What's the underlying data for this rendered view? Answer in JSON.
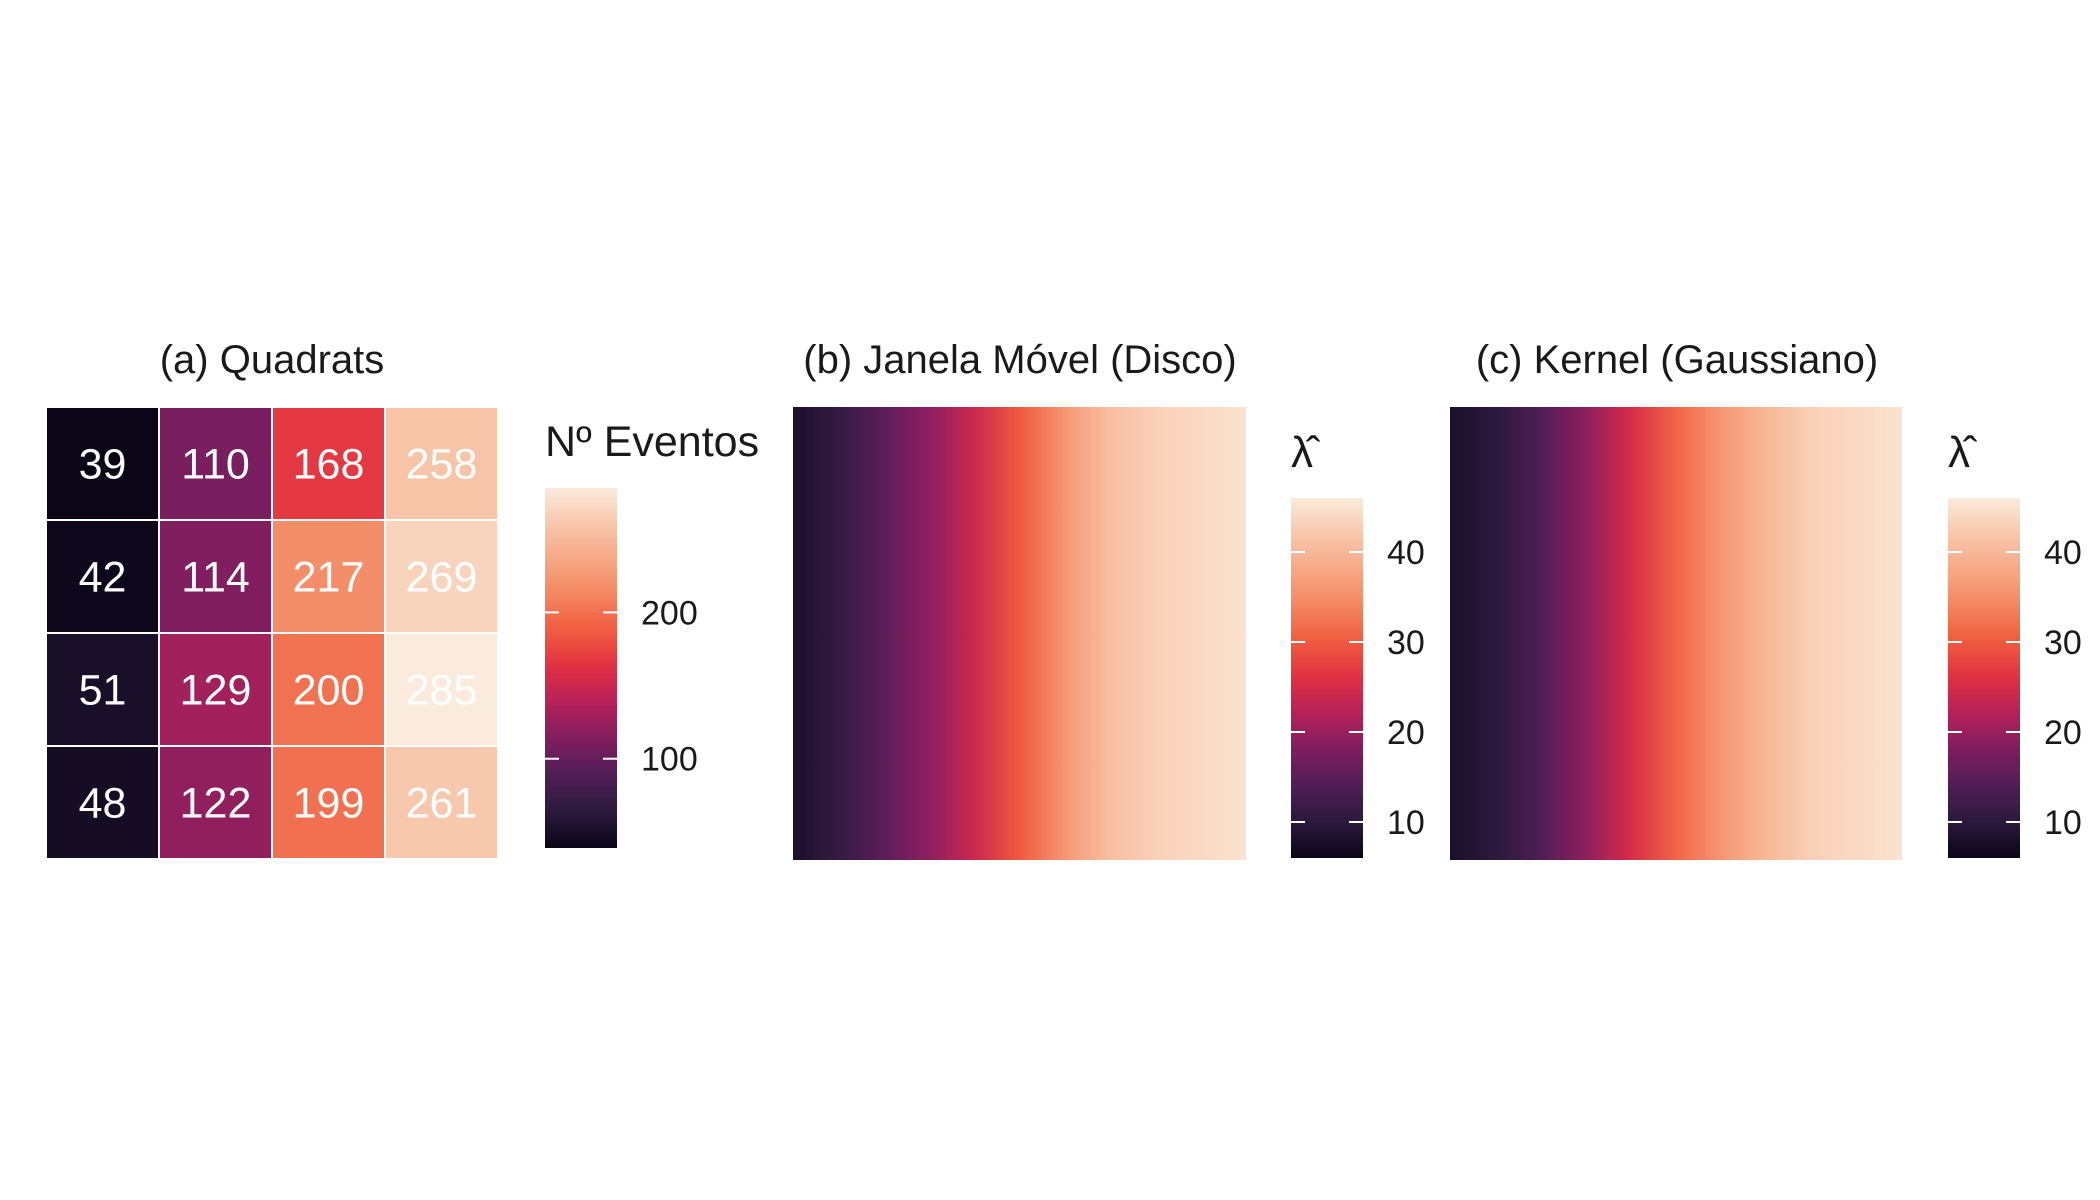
{
  "colors": {
    "scale": [
      "#0b0517",
      "#2a1a3c",
      "#4f1e55",
      "#7e1e5f",
      "#b4215a",
      "#e02f43",
      "#ef5a3f",
      "#f3865f",
      "#f6a885",
      "#f8c7ab",
      "#faebdd"
    ],
    "background": "#ffffff",
    "cell_border": "#ffffff",
    "cell_text": "#ffffff"
  },
  "chart_data": [
    {
      "type": "heatmap",
      "title": "(a) Quadrats",
      "legend_title": "Nº Eventos",
      "legend_ticks": [
        100,
        200
      ],
      "color_range": [
        39,
        285
      ],
      "cells": [
        [
          39,
          110,
          168,
          258
        ],
        [
          42,
          114,
          217,
          269
        ],
        [
          51,
          129,
          200,
          285
        ],
        [
          48,
          122,
          199,
          261
        ]
      ],
      "grid": false
    },
    {
      "type": "heatmap",
      "title": "(b) Janela Móvel (Disco)",
      "legend_title": "λ̂",
      "legend_ticks": [
        10,
        20,
        30,
        40
      ],
      "color_range": [
        6,
        46
      ],
      "intensity_profile_left_to_right": [
        8,
        11,
        15,
        19,
        24,
        30,
        36,
        41,
        43,
        44,
        45
      ],
      "grid": false
    },
    {
      "type": "heatmap",
      "title": "(c) Kernel (Gaussiano)",
      "legend_title": "λ̂",
      "legend_ticks": [
        10,
        20,
        30,
        40
      ],
      "color_range": [
        6,
        46
      ],
      "intensity_profile_left_to_right": [
        8,
        10,
        14,
        19,
        25,
        31,
        36,
        40,
        43,
        44,
        45
      ],
      "grid": false
    }
  ]
}
